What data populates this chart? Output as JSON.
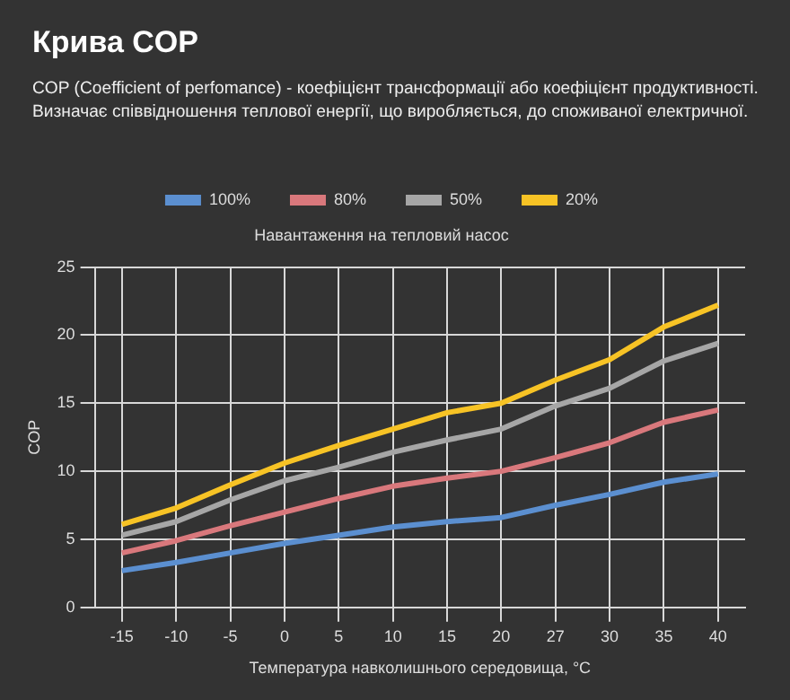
{
  "chart_data": {
    "type": "line",
    "title": "Крива COP",
    "subtitle": "COP (Coefficient of perfomance) - коефіцієнт трансформації або коефіцієнт продуктивності. Визначає співвідношення теплової енергії, що виробляється, до споживаної електричної.",
    "legend_title": "Навантаження на тепловий насос",
    "xlabel": "Температура навколишнього середовища, °С",
    "ylabel": "COP",
    "categories": [
      "-15",
      "-10",
      "-5",
      "0",
      "5",
      "10",
      "15",
      "20",
      "27",
      "30",
      "35",
      "40"
    ],
    "series": [
      {
        "name": "100%",
        "color": "#5b8fd0",
        "values": [
          2.7,
          3.3,
          4.0,
          4.7,
          5.3,
          5.9,
          6.3,
          6.6,
          7.5,
          8.3,
          9.2,
          9.8
        ]
      },
      {
        "name": "80%",
        "color": "#d9787c",
        "values": [
          4.0,
          4.9,
          6.0,
          7.0,
          8.0,
          8.9,
          9.5,
          10.0,
          11.0,
          12.1,
          13.6,
          14.5
        ]
      },
      {
        "name": "50%",
        "color": "#a6a6a6",
        "values": [
          5.3,
          6.3,
          7.9,
          9.3,
          10.3,
          11.4,
          12.3,
          13.1,
          14.8,
          16.1,
          18.1,
          19.4
        ]
      },
      {
        "name": "20%",
        "color": "#f7c325",
        "values": [
          6.1,
          7.3,
          9.0,
          10.6,
          11.9,
          13.1,
          14.3,
          15.0,
          16.7,
          18.2,
          20.6,
          22.2
        ]
      }
    ],
    "ylim": [
      0,
      25
    ],
    "yticks": [
      0,
      5,
      10,
      15,
      20,
      25
    ],
    "grid": true,
    "legend": "top",
    "marker": "none",
    "line_style": "solid"
  }
}
